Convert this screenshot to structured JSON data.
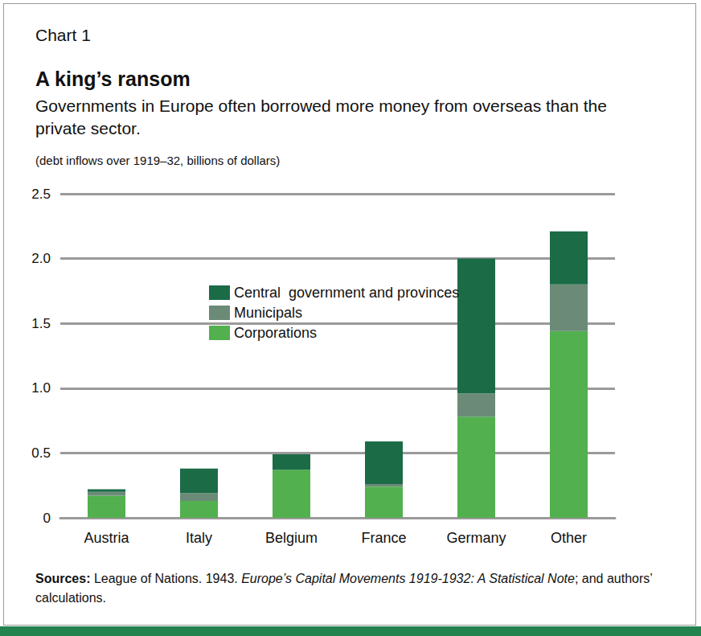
{
  "chart_data": {
    "type": "bar",
    "chart_label": "Chart 1",
    "title": "A king’s ransom",
    "subtitle": "Governments in Europe often borrowed more money from overseas than the private sector.",
    "note": "(debt inflows over 1919–32, billions of dollars)",
    "source": {
      "label": "Sources:",
      "text": "League of Nations. 1943.",
      "publication": "Europe’s Capital Movements 1919-1932: A Statistical Note",
      "rest": "; and authors’ calculations."
    },
    "categories": [
      "Austria",
      "Italy",
      "Belgium",
      "France",
      "Germany",
      "Other"
    ],
    "series": [
      {
        "name": "Central  government and provinces",
        "color": "#1b6b47",
        "values": [
          0.02,
          0.19,
          0.12,
          0.33,
          1.04,
          0.41
        ]
      },
      {
        "name": "Municipals",
        "color": "#6b8a78",
        "values": [
          0.03,
          0.06,
          0.0,
          0.02,
          0.18,
          0.36
        ]
      },
      {
        "name": "Corporations",
        "color": "#52b04e",
        "values": [
          0.17,
          0.13,
          0.37,
          0.24,
          0.78,
          1.44
        ]
      }
    ],
    "stacked": true,
    "ylim": [
      0,
      2.5
    ],
    "yticks": [
      0,
      0.5,
      {
        "value": 1,
        "label": "1.0"
      },
      1.5,
      {
        "value": 2,
        "label": "2.0"
      },
      2.5
    ],
    "grid": true,
    "legend": "center left"
  }
}
